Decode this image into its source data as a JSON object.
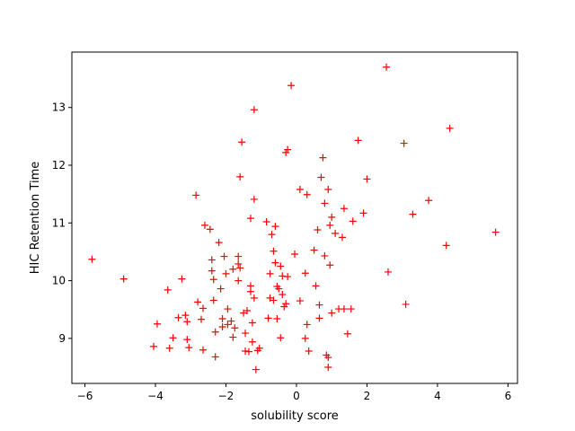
{
  "chart_data": {
    "type": "scatter",
    "title": "",
    "xlabel": "solubility score",
    "ylabel": "HIC Retention Time",
    "xlim": [
      -6.37,
      6.27
    ],
    "ylim": [
      8.22,
      13.96
    ],
    "xticks": [
      -6,
      -4,
      -2,
      0,
      2,
      4,
      6
    ],
    "yticks": [
      9,
      10,
      11,
      12,
      13
    ],
    "xtick_labels": [
      "−6",
      "−4",
      "−2",
      "0",
      "2",
      "4",
      "6"
    ],
    "ytick_labels": [
      "9",
      "10",
      "11",
      "12",
      "13"
    ],
    "grid": false,
    "legend": "none",
    "marker": "+",
    "color": "#ff0000",
    "series": [
      {
        "points": [
          [
            -5.8,
            10.37
          ],
          [
            -4.9,
            10.03
          ],
          [
            -4.05,
            8.86
          ],
          [
            -3.95,
            9.25
          ],
          [
            -3.65,
            9.84
          ],
          [
            -3.6,
            8.83
          ],
          [
            -3.5,
            9.01
          ],
          [
            -3.35,
            9.36
          ],
          [
            -3.25,
            10.03
          ],
          [
            -3.15,
            9.4
          ],
          [
            -3.1,
            9.29
          ],
          [
            -3.1,
            8.98
          ],
          [
            -3.05,
            8.84
          ],
          [
            -2.85,
            11.48
          ],
          [
            -2.8,
            9.63
          ],
          [
            -2.7,
            9.33
          ],
          [
            -2.65,
            9.52
          ],
          [
            -2.65,
            8.8
          ],
          [
            -2.6,
            10.96
          ],
          [
            -2.45,
            10.89
          ],
          [
            -2.4,
            10.36
          ],
          [
            -2.4,
            10.17
          ],
          [
            -2.35,
            9.66
          ],
          [
            -2.35,
            10.02
          ],
          [
            -2.3,
            9.11
          ],
          [
            -2.3,
            8.68
          ],
          [
            -2.2,
            10.66
          ],
          [
            -2.15,
            9.86
          ],
          [
            -2.1,
            9.34
          ],
          [
            -2.1,
            9.2
          ],
          [
            -2.05,
            10.42
          ],
          [
            -2.0,
            10.12
          ],
          [
            -1.95,
            9.51
          ],
          [
            -1.95,
            9.24
          ],
          [
            -1.85,
            9.3
          ],
          [
            -1.8,
            10.2
          ],
          [
            -1.8,
            9.02
          ],
          [
            -1.75,
            9.18
          ],
          [
            -1.65,
            10.42
          ],
          [
            -1.65,
            10.0
          ],
          [
            -1.65,
            10.29
          ],
          [
            -1.6,
            10.22
          ],
          [
            -1.6,
            11.8
          ],
          [
            -1.55,
            12.4
          ],
          [
            -1.5,
            9.44
          ],
          [
            -1.45,
            9.09
          ],
          [
            -1.45,
            8.78
          ],
          [
            -1.4,
            9.48
          ],
          [
            -1.35,
            8.77
          ],
          [
            -1.3,
            9.91
          ],
          [
            -1.3,
            9.81
          ],
          [
            -1.3,
            11.08
          ],
          [
            -1.25,
            8.94
          ],
          [
            -1.25,
            9.27
          ],
          [
            -1.2,
            12.96
          ],
          [
            -1.2,
            11.41
          ],
          [
            -1.2,
            9.7
          ],
          [
            -1.15,
            8.46
          ],
          [
            -1.1,
            8.79
          ],
          [
            -1.05,
            8.83
          ],
          [
            -0.85,
            11.02
          ],
          [
            -0.8,
            9.35
          ],
          [
            -0.75,
            10.12
          ],
          [
            -0.75,
            9.7
          ],
          [
            -0.7,
            10.8
          ],
          [
            -0.65,
            10.51
          ],
          [
            -0.65,
            9.66
          ],
          [
            -0.6,
            10.94
          ],
          [
            -0.6,
            10.31
          ],
          [
            -0.55,
            9.9
          ],
          [
            -0.55,
            9.34
          ],
          [
            -0.5,
            9.86
          ],
          [
            -0.45,
            10.25
          ],
          [
            -0.45,
            9.01
          ],
          [
            -0.4,
            9.76
          ],
          [
            -0.4,
            10.08
          ],
          [
            -0.35,
            9.55
          ],
          [
            -0.3,
            9.6
          ],
          [
            -0.3,
            12.22
          ],
          [
            -0.25,
            12.27
          ],
          [
            -0.25,
            10.07
          ],
          [
            -0.15,
            13.38
          ],
          [
            -0.05,
            10.46
          ],
          [
            0.1,
            11.58
          ],
          [
            0.1,
            9.65
          ],
          [
            0.25,
            10.13
          ],
          [
            0.25,
            9.0
          ],
          [
            0.3,
            11.49
          ],
          [
            0.3,
            9.24
          ],
          [
            0.35,
            8.78
          ],
          [
            0.5,
            10.53
          ],
          [
            0.55,
            9.91
          ],
          [
            0.6,
            10.88
          ],
          [
            0.65,
            9.58
          ],
          [
            0.65,
            9.35
          ],
          [
            0.7,
            11.79
          ],
          [
            0.75,
            12.13
          ],
          [
            0.8,
            10.43
          ],
          [
            0.8,
            11.34
          ],
          [
            0.85,
            8.71
          ],
          [
            0.9,
            11.58
          ],
          [
            0.9,
            8.67
          ],
          [
            0.9,
            8.5
          ],
          [
            0.95,
            10.96
          ],
          [
            0.95,
            10.27
          ],
          [
            1.0,
            11.1
          ],
          [
            1.0,
            9.44
          ],
          [
            1.1,
            10.82
          ],
          [
            1.2,
            9.51
          ],
          [
            1.3,
            10.75
          ],
          [
            1.35,
            9.51
          ],
          [
            1.35,
            11.25
          ],
          [
            1.45,
            9.08
          ],
          [
            1.55,
            9.51
          ],
          [
            1.6,
            11.03
          ],
          [
            1.75,
            12.43
          ],
          [
            1.9,
            11.17
          ],
          [
            2.0,
            11.76
          ],
          [
            2.55,
            13.7
          ],
          [
            2.6,
            10.15
          ],
          [
            3.05,
            12.38
          ],
          [
            3.1,
            9.59
          ],
          [
            3.3,
            11.15
          ],
          [
            3.75,
            11.39
          ],
          [
            4.25,
            10.61
          ],
          [
            4.35,
            12.64
          ],
          [
            5.65,
            10.84
          ]
        ]
      }
    ]
  }
}
